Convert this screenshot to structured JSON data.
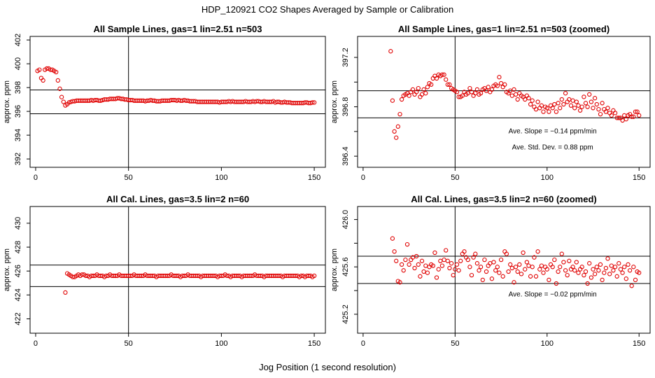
{
  "figure_title": "HDP_120921  CO2 Shapes Averaged by Sample or Calibration",
  "xlabel": "Jog Position (1 second resolution)",
  "chart_data": [
    {
      "type": "scatter",
      "title": "All Sample Lines, gas=1 lin=2.51 n=503",
      "ylabel": "approx. ppm",
      "xlim": [
        -3,
        156
      ],
      "ylim": [
        391.3,
        402.3
      ],
      "xticks": [
        0,
        50,
        100,
        150
      ],
      "yticks": [
        392,
        394,
        396,
        398,
        400,
        402
      ],
      "ytick_labels": [
        "392",
        "394",
        "396",
        "398",
        "400",
        "402"
      ],
      "vline": 50,
      "hlines": [
        397.8,
        395.8
      ],
      "annotations": [],
      "x": [
        1,
        2,
        3,
        4,
        5,
        6,
        7,
        8,
        9,
        10,
        11,
        12,
        13,
        14,
        15,
        16,
        17,
        18,
        19,
        20,
        21,
        22,
        23,
        24,
        25,
        26,
        27,
        28,
        29,
        30,
        31,
        32,
        33,
        34,
        35,
        36,
        37,
        38,
        39,
        40,
        41,
        42,
        43,
        44,
        45,
        46,
        47,
        48,
        49,
        50,
        51,
        52,
        53,
        54,
        55,
        56,
        57,
        58,
        59,
        60,
        61,
        62,
        63,
        64,
        65,
        66,
        67,
        68,
        69,
        70,
        71,
        72,
        73,
        74,
        75,
        76,
        77,
        78,
        79,
        80,
        81,
        82,
        83,
        84,
        85,
        86,
        87,
        88,
        89,
        90,
        91,
        92,
        93,
        94,
        95,
        96,
        97,
        98,
        99,
        100,
        101,
        102,
        103,
        104,
        105,
        106,
        107,
        108,
        109,
        110,
        111,
        112,
        113,
        114,
        115,
        116,
        117,
        118,
        119,
        120,
        121,
        122,
        123,
        124,
        125,
        126,
        127,
        128,
        129,
        130,
        131,
        132,
        133,
        134,
        135,
        136,
        137,
        138,
        139,
        140,
        141,
        142,
        143,
        144,
        145,
        146,
        147,
        148,
        149,
        150
      ],
      "y": [
        399.4,
        399.5,
        398.8,
        398.6,
        399.5,
        399.6,
        399.6,
        399.5,
        399.5,
        399.4,
        399.3,
        398.6,
        397.9,
        397.2,
        396.8,
        396.5,
        396.6,
        396.75,
        396.8,
        396.85,
        396.85,
        396.9,
        396.9,
        396.9,
        396.9,
        396.9,
        396.9,
        396.9,
        396.9,
        396.95,
        396.9,
        396.95,
        396.95,
        396.9,
        396.9,
        396.95,
        397,
        397,
        397,
        397.05,
        397.05,
        397.05,
        397.05,
        397.1,
        397.1,
        397.05,
        397.05,
        397,
        397,
        396.95,
        396.95,
        396.95,
        396.9,
        396.9,
        396.9,
        396.9,
        396.9,
        396.9,
        396.85,
        396.9,
        396.9,
        396.95,
        396.9,
        396.9,
        396.85,
        396.85,
        396.85,
        396.9,
        396.9,
        396.9,
        396.9,
        396.9,
        396.95,
        396.95,
        396.95,
        396.9,
        396.95,
        396.9,
        396.9,
        396.95,
        396.9,
        396.9,
        396.85,
        396.85,
        396.85,
        396.85,
        396.8,
        396.8,
        396.8,
        396.8,
        396.8,
        396.8,
        396.8,
        396.8,
        396.8,
        396.8,
        396.8,
        396.8,
        396.75,
        396.8,
        396.8,
        396.8,
        396.8,
        396.85,
        396.8,
        396.85,
        396.8,
        396.8,
        396.8,
        396.8,
        396.8,
        396.8,
        396.85,
        396.8,
        396.8,
        396.8,
        396.85,
        396.8,
        396.85,
        396.85,
        396.8,
        396.8,
        396.85,
        396.8,
        396.8,
        396.8,
        396.8,
        396.85,
        396.75,
        396.8,
        396.8,
        396.75,
        396.75,
        396.8,
        396.75,
        396.75,
        396.75,
        396.7,
        396.7,
        396.7,
        396.7,
        396.7,
        396.7,
        396.7,
        396.75,
        396.75,
        396.7,
        396.7,
        396.75,
        396.75
      ]
    },
    {
      "type": "scatter",
      "title": "All Sample Lines, gas=1 lin=2.51 n=503 (zoomed)",
      "ylabel": "approx. ppm",
      "xlim": [
        -3,
        156
      ],
      "ylim": [
        396.31,
        397.37
      ],
      "xticks": [
        0,
        50,
        100,
        150
      ],
      "yticks": [
        396.4,
        396.6,
        396.8,
        397,
        397.2
      ],
      "ytick_labels": [
        "396.4",
        "",
        "396.8",
        "",
        "397.2"
      ],
      "vline": 50,
      "hlines": [
        396.93,
        396.71
      ],
      "annotations": [
        {
          "label": "Ave. Slope =  −0.14  ppm/min",
          "x": 103,
          "y": 396.585
        },
        {
          "label": "Ave. Std. Dev. =  0.88  ppm",
          "x": 103,
          "y": 396.455
        }
      ],
      "x": [
        15,
        16,
        17,
        18,
        19,
        20,
        21,
        22,
        23,
        24,
        25,
        26,
        27,
        28,
        29,
        30,
        31,
        32,
        33,
        34,
        35,
        36,
        37,
        38,
        39,
        40,
        41,
        42,
        43,
        44,
        45,
        46,
        47,
        48,
        49,
        50,
        51,
        52,
        53,
        54,
        55,
        56,
        57,
        58,
        59,
        60,
        61,
        62,
        63,
        64,
        65,
        66,
        67,
        68,
        69,
        70,
        71,
        72,
        73,
        74,
        75,
        76,
        77,
        78,
        79,
        80,
        81,
        82,
        83,
        84,
        85,
        86,
        87,
        88,
        89,
        90,
        91,
        92,
        93,
        94,
        95,
        96,
        97,
        98,
        99,
        100,
        101,
        102,
        103,
        104,
        105,
        106,
        107,
        108,
        109,
        110,
        111,
        112,
        113,
        114,
        115,
        116,
        117,
        118,
        119,
        120,
        121,
        122,
        123,
        124,
        125,
        126,
        127,
        128,
        129,
        130,
        131,
        132,
        133,
        134,
        135,
        136,
        137,
        138,
        139,
        140,
        141,
        142,
        143,
        144,
        145,
        146,
        147,
        148,
        149,
        150
      ],
      "y": [
        397.25,
        396.85,
        396.6,
        396.55,
        396.64,
        396.74,
        396.86,
        396.89,
        396.9,
        396.91,
        396.89,
        396.92,
        396.94,
        396.9,
        396.92,
        396.95,
        396.88,
        396.9,
        396.94,
        396.91,
        396.96,
        396.99,
        396.98,
        397.03,
        397.05,
        397.03,
        397.06,
        397.05,
        397.06,
        397.06,
        397.02,
        396.98,
        396.98,
        396.95,
        396.94,
        396.93,
        396.92,
        396.88,
        396.88,
        396.89,
        396.92,
        396.9,
        396.91,
        396.95,
        396.92,
        396.89,
        396.91,
        396.94,
        396.9,
        396.91,
        396.94,
        396.95,
        396.93,
        396.96,
        396.92,
        396.94,
        396.97,
        396.98,
        396.97,
        397.04,
        396.99,
        396.96,
        396.98,
        396.92,
        396.91,
        396.93,
        396.89,
        396.94,
        396.9,
        396.86,
        396.91,
        396.89,
        396.88,
        396.86,
        396.89,
        396.87,
        396.82,
        396.85,
        396.8,
        396.78,
        396.84,
        396.79,
        396.81,
        396.76,
        396.8,
        396.79,
        396.76,
        396.81,
        396.79,
        396.82,
        396.76,
        396.83,
        396.79,
        396.86,
        396.82,
        396.91,
        396.84,
        396.86,
        396.81,
        396.85,
        396.79,
        396.84,
        396.81,
        396.77,
        396.8,
        396.88,
        396.83,
        396.8,
        396.9,
        396.84,
        396.79,
        396.87,
        396.82,
        396.78,
        396.74,
        396.83,
        396.78,
        396.76,
        396.79,
        396.75,
        396.73,
        396.77,
        396.75,
        396.71,
        396.71,
        396.71,
        396.69,
        396.73,
        396.7,
        396.73,
        396.74,
        396.72,
        396.72,
        396.76,
        396.76,
        396.73
      ]
    },
    {
      "type": "scatter",
      "title": "All Cal. Lines, gas=3.5 lin=2 n=60",
      "ylabel": "approx. ppm",
      "xlim": [
        -3,
        156
      ],
      "ylim": [
        420.8,
        431.4
      ],
      "xticks": [
        0,
        50,
        100,
        150
      ],
      "yticks": [
        422,
        424,
        426,
        428,
        430
      ],
      "ytick_labels": [
        "422",
        "424",
        "426",
        "428",
        "430"
      ],
      "vline": 50,
      "hlines": [
        426.5,
        424.7
      ],
      "annotations": [],
      "x": [
        16,
        17,
        18,
        19,
        20,
        21,
        22,
        23,
        24,
        25,
        26,
        27,
        28,
        29,
        30,
        31,
        32,
        33,
        34,
        35,
        36,
        37,
        38,
        39,
        40,
        41,
        42,
        43,
        44,
        45,
        46,
        47,
        48,
        49,
        50,
        51,
        52,
        53,
        54,
        55,
        56,
        57,
        58,
        59,
        60,
        61,
        62,
        63,
        64,
        65,
        66,
        67,
        68,
        69,
        70,
        71,
        72,
        73,
        74,
        75,
        76,
        77,
        78,
        79,
        80,
        81,
        82,
        83,
        84,
        85,
        86,
        87,
        88,
        89,
        90,
        91,
        92,
        93,
        94,
        95,
        96,
        97,
        98,
        99,
        100,
        101,
        102,
        103,
        104,
        105,
        106,
        107,
        108,
        109,
        110,
        111,
        112,
        113,
        114,
        115,
        116,
        117,
        118,
        119,
        120,
        121,
        122,
        123,
        124,
        125,
        126,
        127,
        128,
        129,
        130,
        131,
        132,
        133,
        134,
        135,
        136,
        137,
        138,
        139,
        140,
        141,
        142,
        143,
        144,
        145,
        146,
        147,
        148,
        149,
        150
      ],
      "y": [
        424.2,
        425.8,
        425.7,
        425.6,
        425.5,
        425.5,
        425.6,
        425.7,
        425.6,
        425.7,
        425.7,
        425.6,
        425.6,
        425.5,
        425.6,
        425.6,
        425.6,
        425.7,
        425.6,
        425.6,
        425.6,
        425.5,
        425.6,
        425.6,
        425.7,
        425.6,
        425.6,
        425.6,
        425.6,
        425.7,
        425.6,
        425.6,
        425.6,
        425.6,
        425.6,
        425.6,
        425.6,
        425.7,
        425.6,
        425.6,
        425.6,
        425.6,
        425.6,
        425.7,
        425.6,
        425.6,
        425.6,
        425.6,
        425.6,
        425.5,
        425.6,
        425.6,
        425.6,
        425.6,
        425.6,
        425.6,
        425.6,
        425.7,
        425.6,
        425.6,
        425.6,
        425.6,
        425.5,
        425.6,
        425.6,
        425.6,
        425.7,
        425.6,
        425.6,
        425.6,
        425.6,
        425.6,
        425.6,
        425.5,
        425.6,
        425.6,
        425.6,
        425.6,
        425.6,
        425.6,
        425.6,
        425.6,
        425.5,
        425.6,
        425.6,
        425.6,
        425.7,
        425.6,
        425.6,
        425.5,
        425.6,
        425.6,
        425.6,
        425.6,
        425.6,
        425.5,
        425.6,
        425.6,
        425.6,
        425.6,
        425.6,
        425.6,
        425.7,
        425.6,
        425.6,
        425.6,
        425.6,
        425.5,
        425.6,
        425.6,
        425.6,
        425.6,
        425.6,
        425.6,
        425.6,
        425.6,
        425.6,
        425.5,
        425.6,
        425.6,
        425.6,
        425.6,
        425.6,
        425.6,
        425.6,
        425.6,
        425.5,
        425.6,
        425.6,
        425.5,
        425.6,
        425.6,
        425.6,
        425.5,
        425.6
      ]
    },
    {
      "type": "scatter",
      "title": "All Cal. Lines, gas=3.5 lin=2 n=60 (zoomed)",
      "ylabel": "approx. ppm",
      "xlim": [
        -3,
        156
      ],
      "ylim": [
        425.04,
        426.11
      ],
      "xticks": [
        0,
        50,
        100,
        150
      ],
      "yticks": [
        425.2,
        425.4,
        425.6,
        425.8,
        426
      ],
      "ytick_labels": [
        "425.2",
        "",
        "425.6",
        "",
        "426.0"
      ],
      "vline": 50,
      "hlines": [
        425.69,
        425.46
      ],
      "annotations": [
        {
          "label": "Ave. Slope =  −0.02  ppm/min",
          "x": 103,
          "y": 425.35
        }
      ],
      "x": [
        16,
        17,
        18,
        19,
        20,
        21,
        22,
        23,
        24,
        25,
        26,
        27,
        28,
        29,
        30,
        31,
        32,
        33,
        34,
        35,
        36,
        37,
        38,
        39,
        40,
        41,
        42,
        43,
        44,
        45,
        46,
        47,
        48,
        49,
        50,
        51,
        52,
        53,
        54,
        55,
        56,
        57,
        58,
        59,
        60,
        61,
        62,
        63,
        64,
        65,
        66,
        67,
        68,
        69,
        70,
        71,
        72,
        73,
        74,
        75,
        76,
        77,
        78,
        79,
        80,
        81,
        82,
        83,
        84,
        85,
        86,
        87,
        88,
        89,
        90,
        91,
        92,
        93,
        94,
        95,
        96,
        97,
        98,
        99,
        100,
        101,
        102,
        103,
        104,
        105,
        106,
        107,
        108,
        109,
        110,
        111,
        112,
        113,
        114,
        115,
        116,
        117,
        118,
        119,
        120,
        121,
        122,
        123,
        124,
        125,
        126,
        127,
        128,
        129,
        130,
        131,
        132,
        133,
        134,
        135,
        136,
        137,
        138,
        139,
        140,
        141,
        142,
        143,
        144,
        145,
        146,
        147,
        148,
        149,
        150
      ],
      "y": [
        425.84,
        425.73,
        425.65,
        425.48,
        425.47,
        425.62,
        425.57,
        425.66,
        425.79,
        425.62,
        425.66,
        425.68,
        425.59,
        425.69,
        425.62,
        425.52,
        425.65,
        425.56,
        425.61,
        425.55,
        425.6,
        425.62,
        425.61,
        425.72,
        425.51,
        425.58,
        425.65,
        425.61,
        425.66,
        425.74,
        425.65,
        425.59,
        425.63,
        425.53,
        425.58,
        425.62,
        425.57,
        425.65,
        425.71,
        425.73,
        425.68,
        425.66,
        425.6,
        425.53,
        425.68,
        425.71,
        425.63,
        425.57,
        425.6,
        425.49,
        425.66,
        425.56,
        425.61,
        425.63,
        425.5,
        425.64,
        425.57,
        425.6,
        425.55,
        425.66,
        425.52,
        425.73,
        425.71,
        425.56,
        425.62,
        425.59,
        425.47,
        425.6,
        425.56,
        425.62,
        425.54,
        425.72,
        425.58,
        425.64,
        425.61,
        425.52,
        425.6,
        425.68,
        425.52,
        425.73,
        425.58,
        425.61,
        425.55,
        425.6,
        425.58,
        425.49,
        425.62,
        425.6,
        425.66,
        425.46,
        425.56,
        425.6,
        425.71,
        425.64,
        425.57,
        425.53,
        425.65,
        425.58,
        425.6,
        425.57,
        425.64,
        425.55,
        425.58,
        425.6,
        425.53,
        425.56,
        425.46,
        425.63,
        425.51,
        425.58,
        425.54,
        425.6,
        425.57,
        425.62,
        425.49,
        425.55,
        425.59,
        425.67,
        425.54,
        425.61,
        425.57,
        425.6,
        425.52,
        425.63,
        425.58,
        425.55,
        425.6,
        425.5,
        425.62,
        425.57,
        425.44,
        425.6,
        425.49,
        425.56,
        425.55
      ]
    }
  ]
}
